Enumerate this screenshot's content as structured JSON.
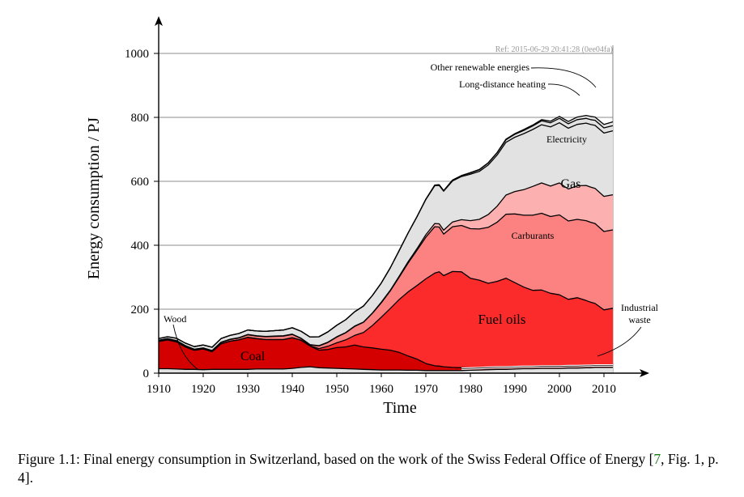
{
  "chart_data": {
    "type": "area",
    "stacked": true,
    "title": "",
    "xlabel": "Time",
    "ylabel": "Energy consumption / PJ",
    "xlim": [
      1910,
      2012
    ],
    "ylim": [
      0,
      1000
    ],
    "xticks": [
      1910,
      1920,
      1930,
      1940,
      1950,
      1960,
      1970,
      1980,
      1990,
      2000,
      2010
    ],
    "yticks": [
      0,
      200,
      400,
      600,
      800,
      1000
    ],
    "grid": "horizontal",
    "reference_note": "Ref: 2015-06-29 20:41:28 (0ee04fa)",
    "x": [
      1910,
      1912,
      1914,
      1916,
      1918,
      1920,
      1922,
      1924,
      1926,
      1928,
      1930,
      1932,
      1934,
      1936,
      1938,
      1940,
      1942,
      1944,
      1946,
      1948,
      1950,
      1952,
      1954,
      1956,
      1958,
      1960,
      1962,
      1964,
      1966,
      1968,
      1970,
      1972,
      1973,
      1974,
      1976,
      1978,
      1980,
      1982,
      1984,
      1986,
      1988,
      1990,
      1992,
      1994,
      1996,
      1998,
      2000,
      2002,
      2004,
      2006,
      2007,
      2008,
      2010,
      2012
    ],
    "series": [
      {
        "name": "Wood",
        "color": "#e2e2e2",
        "values": [
          14,
          14,
          13,
          12,
          12,
          11,
          12,
          12,
          12,
          12,
          12,
          13,
          13,
          13,
          13,
          15,
          18,
          20,
          17,
          16,
          15,
          14,
          13,
          12,
          11,
          10,
          10,
          10,
          9,
          9,
          8,
          8,
          8,
          8,
          8,
          8,
          9,
          10,
          11,
          12,
          12,
          13,
          14,
          14,
          15,
          15,
          15,
          16,
          16,
          17,
          17,
          18,
          18,
          18
        ]
      },
      {
        "name": "Coal",
        "color": "#d40000",
        "values": [
          85,
          90,
          85,
          70,
          60,
          65,
          55,
          80,
          88,
          92,
          100,
          95,
          92,
          92,
          92,
          96,
          85,
          65,
          55,
          58,
          65,
          68,
          75,
          70,
          68,
          65,
          62,
          55,
          45,
          35,
          22,
          15,
          14,
          12,
          10,
          9,
          8,
          6,
          5,
          5,
          5,
          5,
          5,
          5,
          5,
          5,
          5,
          5,
          5,
          5,
          5,
          5,
          5,
          5
        ]
      },
      {
        "name": "Fuel oils",
        "color": "#fc2b2b",
        "values": [
          0,
          0,
          0,
          0,
          0,
          0,
          0,
          0,
          0,
          0,
          0,
          0,
          0,
          0,
          0,
          0,
          0,
          0,
          5,
          10,
          15,
          22,
          30,
          45,
          70,
          100,
          130,
          165,
          200,
          230,
          265,
          290,
          295,
          285,
          300,
          300,
          280,
          275,
          265,
          270,
          280,
          265,
          250,
          240,
          240,
          230,
          225,
          210,
          215,
          205,
          200,
          195,
          175,
          180
        ]
      },
      {
        "name": "Carburants",
        "color": "#fc8282",
        "values": [
          3,
          3,
          3,
          3,
          2,
          2,
          3,
          4,
          5,
          6,
          8,
          8,
          9,
          10,
          11,
          10,
          5,
          3,
          8,
          12,
          18,
          22,
          28,
          32,
          38,
          45,
          55,
          70,
          90,
          110,
          130,
          145,
          140,
          130,
          140,
          145,
          155,
          160,
          175,
          185,
          200,
          215,
          225,
          235,
          240,
          240,
          250,
          245,
          245,
          250,
          250,
          250,
          245,
          245
        ]
      },
      {
        "name": "Gas",
        "color": "#fdb0b0",
        "values": [
          1,
          1,
          1,
          1,
          1,
          1,
          1,
          1,
          1,
          1,
          1,
          1,
          1,
          1,
          1,
          1,
          1,
          1,
          1,
          1,
          1,
          1,
          1,
          1,
          1,
          2,
          2,
          3,
          4,
          5,
          8,
          10,
          10,
          12,
          15,
          18,
          25,
          30,
          40,
          50,
          60,
          70,
          80,
          90,
          95,
          95,
          100,
          100,
          105,
          110,
          110,
          110,
          110,
          110
        ]
      },
      {
        "name": "Electricity",
        "color": "#e2e2e2",
        "values": [
          5,
          6,
          7,
          8,
          8,
          9,
          10,
          11,
          12,
          13,
          14,
          15,
          16,
          17,
          18,
          20,
          22,
          24,
          28,
          32,
          36,
          40,
          45,
          50,
          55,
          60,
          70,
          80,
          90,
          100,
          110,
          118,
          120,
          122,
          128,
          135,
          145,
          150,
          155,
          160,
          165,
          170,
          175,
          178,
          182,
          185,
          188,
          190,
          192,
          195,
          196,
          197,
          198,
          200
        ]
      },
      {
        "name": "Long-distance heating",
        "color": "#e2e2e2",
        "values": [
          0,
          0,
          0,
          0,
          0,
          0,
          0,
          0,
          0,
          0,
          0,
          0,
          0,
          0,
          0,
          0,
          0,
          0,
          0,
          0,
          0,
          0,
          0,
          0,
          0,
          0,
          0,
          0,
          0,
          0,
          1,
          2,
          2,
          2,
          3,
          3,
          4,
          5,
          6,
          7,
          8,
          9,
          10,
          11,
          12,
          13,
          14,
          14,
          15,
          15,
          15,
          16,
          16,
          16
        ]
      },
      {
        "name": "Other renewable energies",
        "color": "#e2e2e2",
        "values": [
          0,
          0,
          0,
          0,
          0,
          0,
          0,
          0,
          0,
          0,
          0,
          0,
          0,
          0,
          0,
          0,
          0,
          0,
          0,
          0,
          0,
          0,
          0,
          0,
          0,
          0,
          0,
          0,
          0,
          0,
          0,
          0,
          0,
          0,
          0,
          0,
          1,
          1,
          1,
          1,
          2,
          2,
          3,
          3,
          4,
          5,
          6,
          7,
          8,
          9,
          10,
          10,
          11,
          12
        ]
      }
    ],
    "industrial_waste_band": {
      "name": "Industrial waste",
      "start_year": 1978,
      "thickness": 6
    },
    "annotations": [
      {
        "text": "Wood"
      },
      {
        "text": "Coal"
      },
      {
        "text": "Fuel oils"
      },
      {
        "text": "Carburants"
      },
      {
        "text": "Gas"
      },
      {
        "text": "Electricity"
      },
      {
        "text": "Long-distance heating"
      },
      {
        "text": "Other renewable energies"
      },
      {
        "text": "Industrial"
      },
      {
        "text": "waste"
      }
    ]
  },
  "caption": {
    "text_before": "Figure 1.1: Final energy consumption in Switzerland, based on the work of the Swiss Federal Office of Energy [",
    "ref": "7",
    "text_after": ", Fig. 1, p. 4]."
  }
}
